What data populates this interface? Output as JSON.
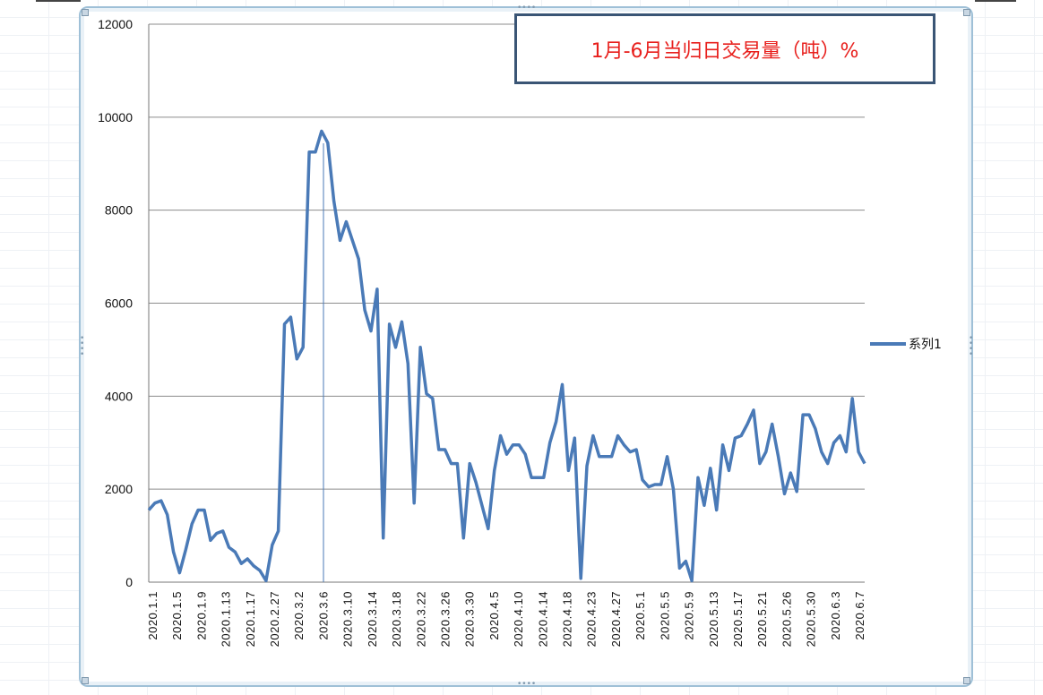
{
  "chart_data": {
    "type": "line",
    "title": "1月-6月当归日交易量（吨）%",
    "xlabel": "",
    "ylabel": "",
    "ylim": [
      0,
      12000
    ],
    "yticks": [
      "0",
      "2000",
      "4000",
      "6000",
      "8000",
      "10000",
      "12000"
    ],
    "grid": true,
    "legend_position": "right",
    "line_color": "#4a7ab7",
    "x_tick_labels": [
      "2020.1.1",
      "2020.1.5",
      "2020.1.9",
      "2020.1.13",
      "2020.1.17",
      "2020.2.27",
      "2020.3.2",
      "2020.3.6",
      "2020.3.10",
      "2020.3.14",
      "2020.3.18",
      "2020.3.22",
      "2020.3.26",
      "2020.3.30",
      "2020.4.5",
      "2020.4.10",
      "2020.4.14",
      "2020.4.18",
      "2020.4.23",
      "2020.4.27",
      "2020.5.1",
      "2020.5.5",
      "2020.5.9",
      "2020.5.13",
      "2020.5.17",
      "2020.5.21",
      "2020.5.26",
      "2020.5.30",
      "2020.6.3",
      "2020.6.7"
    ],
    "series": [
      {
        "name": "系列1",
        "values": [
          1550,
          1700,
          1750,
          1450,
          650,
          200,
          700,
          1250,
          1550,
          1550,
          900,
          1050,
          1100,
          750,
          650,
          400,
          500,
          350,
          250,
          30,
          800,
          1100,
          5550,
          5700,
          4800,
          5050,
          9250,
          9250,
          9700,
          9450,
          8200,
          7350,
          7750,
          7350,
          6950,
          5850,
          5400,
          6300,
          950,
          5550,
          5050,
          5600,
          4700,
          1700,
          5050,
          4050,
          3950,
          2850,
          2850,
          2550,
          2550,
          950,
          2550,
          2150,
          1650,
          1150,
          2400,
          3150,
          2750,
          2950,
          2950,
          2750,
          2250,
          2250,
          2250,
          3000,
          3450,
          4250,
          2400,
          3100,
          80,
          2500,
          3150,
          2700,
          2700,
          2700,
          3150,
          2950,
          2800,
          2850,
          2200,
          2050,
          2100,
          2100,
          2700,
          2000,
          300,
          450,
          30,
          2250,
          1650,
          2450,
          1550,
          2950,
          2400,
          3100,
          3150,
          3400,
          3700,
          2550,
          2800,
          3400,
          2700,
          1900,
          2350,
          1950,
          3600,
          3600,
          3300,
          2800,
          2550,
          3000,
          3150,
          2800,
          3950,
          2800,
          2550
        ]
      }
    ]
  }
}
